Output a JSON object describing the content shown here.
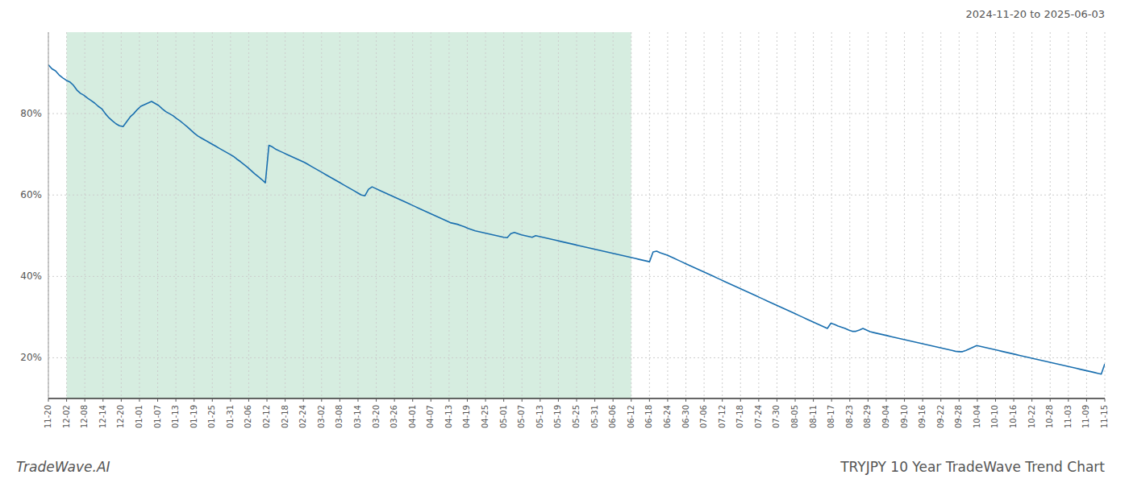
{
  "chart_data": {
    "type": "line",
    "title": "TRYJPY 10 Year TradeWave Trend Chart",
    "subtitle": "2024-11-20 to 2025-06-03",
    "annotations": [
      "TradeWave.AI"
    ],
    "color": "#1a6faf",
    "grid": true,
    "shaded": {
      "start": 5.12069,
      "end": 163.862069,
      "color": "#d6ede0"
    },
    "xlim": [
      0,
      297
    ],
    "xticks": [
      {
        "value": 0,
        "label": "11-20"
      },
      {
        "value": 5.12069,
        "label": "12-02"
      },
      {
        "value": 10.241379,
        "label": "12-08"
      },
      {
        "value": 15.362069,
        "label": "12-14"
      },
      {
        "value": 20.482759,
        "label": "12-20"
      },
      {
        "value": 25.603448,
        "label": "01-01"
      },
      {
        "value": 30.724138,
        "label": "01-07"
      },
      {
        "value": 35.844828,
        "label": "01-13"
      },
      {
        "value": 40.965517,
        "label": "01-19"
      },
      {
        "value": 46.086207,
        "label": "01-25"
      },
      {
        "value": 51.206897,
        "label": "01-31"
      },
      {
        "value": 56.327586,
        "label": "02-06"
      },
      {
        "value": 61.448276,
        "label": "02-12"
      },
      {
        "value": 66.568966,
        "label": "02-18"
      },
      {
        "value": 71.689655,
        "label": "02-24"
      },
      {
        "value": 76.810345,
        "label": "03-02"
      },
      {
        "value": 81.931034,
        "label": "03-08"
      },
      {
        "value": 87.051724,
        "label": "03-14"
      },
      {
        "value": 92.172414,
        "label": "03-20"
      },
      {
        "value": 97.293103,
        "label": "03-26"
      },
      {
        "value": 102.413793,
        "label": "04-01"
      },
      {
        "value": 107.534483,
        "label": "04-07"
      },
      {
        "value": 112.655172,
        "label": "04-13"
      },
      {
        "value": 117.775862,
        "label": "04-19"
      },
      {
        "value": 122.896552,
        "label": "04-25"
      },
      {
        "value": 128.017241,
        "label": "05-01"
      },
      {
        "value": 133.137931,
        "label": "05-07"
      },
      {
        "value": 138.258621,
        "label": "05-13"
      },
      {
        "value": 143.37931,
        "label": "05-19"
      },
      {
        "value": 148.5,
        "label": "05-25"
      },
      {
        "value": 153.62069,
        "label": "05-31"
      },
      {
        "value": 158.741379,
        "label": "06-06"
      },
      {
        "value": 163.862069,
        "label": "06-12"
      },
      {
        "value": 168.982759,
        "label": "06-18"
      },
      {
        "value": 174.103448,
        "label": "06-24"
      },
      {
        "value": 179.224138,
        "label": "06-30"
      },
      {
        "value": 184.344828,
        "label": "07-06"
      },
      {
        "value": 189.465517,
        "label": "07-12"
      },
      {
        "value": 194.586207,
        "label": "07-18"
      },
      {
        "value": 199.706897,
        "label": "07-24"
      },
      {
        "value": 204.827586,
        "label": "07-30"
      },
      {
        "value": 209.948276,
        "label": "08-05"
      },
      {
        "value": 215.068966,
        "label": "08-11"
      },
      {
        "value": 220.189655,
        "label": "08-17"
      },
      {
        "value": 225.310345,
        "label": "08-23"
      },
      {
        "value": 230.431034,
        "label": "08-29"
      },
      {
        "value": 235.551724,
        "label": "09-04"
      },
      {
        "value": 240.672414,
        "label": "09-10"
      },
      {
        "value": 245.793103,
        "label": "09-16"
      },
      {
        "value": 250.913793,
        "label": "09-22"
      },
      {
        "value": 256.034483,
        "label": "09-28"
      },
      {
        "value": 261.155172,
        "label": "10-04"
      },
      {
        "value": 266.275862,
        "label": "10-10"
      },
      {
        "value": 271.396552,
        "label": "10-16"
      },
      {
        "value": 276.517241,
        "label": "10-22"
      },
      {
        "value": 281.637931,
        "label": "10-28"
      },
      {
        "value": 286.758621,
        "label": "11-03"
      },
      {
        "value": 291.87931,
        "label": "11-09"
      },
      {
        "value": 297,
        "label": "11-15"
      }
    ],
    "ylim": [
      0.1,
      1.0
    ],
    "yticks": [
      {
        "value": 0.2,
        "label": "20%"
      },
      {
        "value": 0.4,
        "label": "40%"
      },
      {
        "value": 0.6,
        "label": "60%"
      },
      {
        "value": 0.8,
        "label": "80%"
      }
    ],
    "values": [
      0.92,
      0.91,
      0.905,
      0.895,
      0.888,
      0.882,
      0.878,
      0.87,
      0.858,
      0.85,
      0.845,
      0.838,
      0.832,
      0.826,
      0.818,
      0.812,
      0.8,
      0.79,
      0.782,
      0.775,
      0.77,
      0.768,
      0.78,
      0.792,
      0.8,
      0.81,
      0.818,
      0.822,
      0.826,
      0.83,
      0.825,
      0.82,
      0.812,
      0.805,
      0.8,
      0.795,
      0.788,
      0.782,
      0.775,
      0.768,
      0.76,
      0.752,
      0.745,
      0.74,
      0.735,
      0.73,
      0.725,
      0.72,
      0.715,
      0.71,
      0.705,
      0.7,
      0.695,
      0.688,
      0.682,
      0.675,
      0.668,
      0.66,
      0.652,
      0.645,
      0.638,
      0.63,
      0.722,
      0.718,
      0.712,
      0.708,
      0.704,
      0.7,
      0.696,
      0.692,
      0.688,
      0.684,
      0.68,
      0.675,
      0.67,
      0.665,
      0.66,
      0.655,
      0.65,
      0.645,
      0.64,
      0.635,
      0.63,
      0.625,
      0.62,
      0.615,
      0.61,
      0.605,
      0.6,
      0.598,
      0.614,
      0.62,
      0.616,
      0.612,
      0.608,
      0.604,
      0.6,
      0.596,
      0.592,
      0.588,
      0.584,
      0.58,
      0.576,
      0.572,
      0.568,
      0.564,
      0.56,
      0.556,
      0.552,
      0.548,
      0.544,
      0.54,
      0.536,
      0.532,
      0.53,
      0.528,
      0.525,
      0.522,
      0.518,
      0.515,
      0.512,
      0.51,
      0.508,
      0.506,
      0.504,
      0.502,
      0.5,
      0.498,
      0.496,
      0.495,
      0.505,
      0.508,
      0.505,
      0.502,
      0.5,
      0.498,
      0.496,
      0.5,
      0.498,
      0.496,
      0.494,
      0.492,
      0.49,
      0.488,
      0.486,
      0.484,
      0.482,
      0.48,
      0.478,
      0.476,
      0.474,
      0.472,
      0.47,
      0.468,
      0.466,
      0.464,
      0.462,
      0.46,
      0.458,
      0.456,
      0.454,
      0.452,
      0.45,
      0.448,
      0.446,
      0.444,
      0.442,
      0.44,
      0.438,
      0.436,
      0.46,
      0.462,
      0.458,
      0.455,
      0.452,
      0.448,
      0.444,
      0.44,
      0.436,
      0.432,
      0.428,
      0.424,
      0.42,
      0.416,
      0.412,
      0.408,
      0.404,
      0.4,
      0.396,
      0.392,
      0.388,
      0.384,
      0.38,
      0.376,
      0.372,
      0.368,
      0.364,
      0.36,
      0.356,
      0.352,
      0.348,
      0.344,
      0.34,
      0.336,
      0.332,
      0.328,
      0.324,
      0.32,
      0.316,
      0.312,
      0.308,
      0.304,
      0.3,
      0.296,
      0.292,
      0.288,
      0.284,
      0.28,
      0.276,
      0.272,
      0.285,
      0.282,
      0.278,
      0.275,
      0.272,
      0.268,
      0.265,
      0.265,
      0.268,
      0.272,
      0.268,
      0.264,
      0.262,
      0.26,
      0.258,
      0.256,
      0.254,
      0.252,
      0.25,
      0.248,
      0.246,
      0.244,
      0.242,
      0.24,
      0.238,
      0.236,
      0.234,
      0.232,
      0.23,
      0.228,
      0.226,
      0.224,
      0.222,
      0.22,
      0.218,
      0.216,
      0.215,
      0.215,
      0.218,
      0.222,
      0.226,
      0.23,
      0.228,
      0.226,
      0.224,
      0.222,
      0.22,
      0.218,
      0.216,
      0.214,
      0.212,
      0.21,
      0.208,
      0.206,
      0.204,
      0.202,
      0.2,
      0.198,
      0.196,
      0.194,
      0.192,
      0.19,
      0.188,
      0.186,
      0.184,
      0.182,
      0.18,
      0.178,
      0.176,
      0.174,
      0.172,
      0.17,
      0.168,
      0.166,
      0.164,
      0.162,
      0.16,
      0.185
    ]
  }
}
